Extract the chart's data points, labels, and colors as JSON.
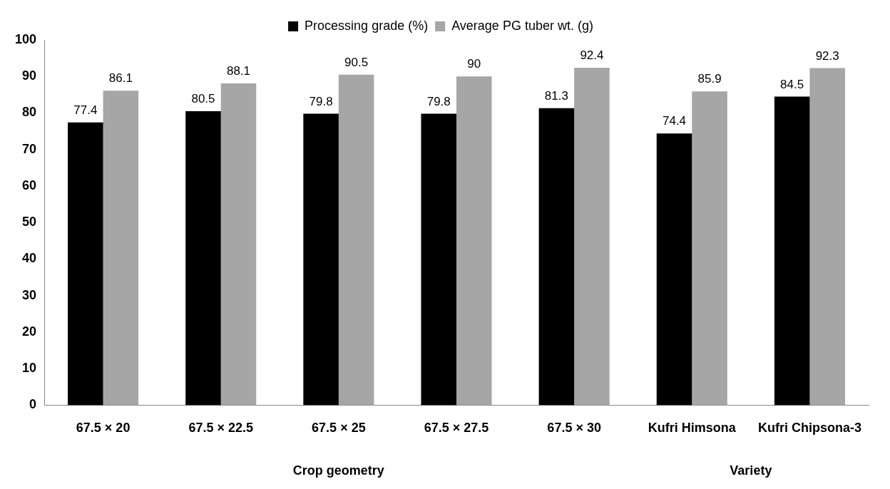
{
  "chart_data": {
    "type": "bar",
    "categories": [
      "67.5 × 20",
      "67.5 × 22.5",
      "67.5 × 25",
      "67.5 × 27.5",
      "67.5 × 30",
      "Kufri Himsona",
      "Kufri Chipsona-3"
    ],
    "series": [
      {
        "name": "Processing grade (%)",
        "color": "#000000",
        "values": [
          77.4,
          80.5,
          79.8,
          79.8,
          81.3,
          74.4,
          84.5
        ]
      },
      {
        "name": "Average PG tuber wt. (g)",
        "color": "#a6a6a6",
        "values": [
          86.1,
          88.1,
          90.5,
          90,
          92.4,
          85.9,
          92.3
        ]
      }
    ],
    "ylim": [
      0,
      100
    ],
    "yticks": [
      0,
      10,
      20,
      30,
      40,
      50,
      60,
      70,
      80,
      90,
      100
    ],
    "grid": false,
    "legend": "top",
    "data_labels": true,
    "annotations": [
      "Crop geometry",
      "Variety"
    ]
  }
}
